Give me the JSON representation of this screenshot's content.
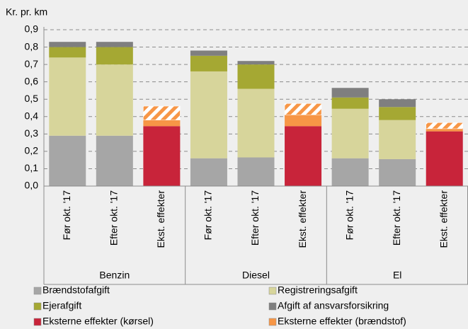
{
  "chart_data": {
    "type": "stacked_bar",
    "y_label": "Kr. pr. km",
    "groups": [
      "Benzin",
      "Diesel",
      "El"
    ],
    "categories": [
      "Før okt. '17",
      "Efter okt. '17",
      "Ekst. effekter",
      "Før okt. '17",
      "Efter okt. '17",
      "Ekst. effekter",
      "Før okt. '17",
      "Efter okt. '17",
      "Ekst. effekter"
    ],
    "series": [
      {
        "name": "Brændstofafgift",
        "color": "#a6a6a6",
        "values": [
          0.29,
          0.29,
          null,
          0.16,
          0.165,
          null,
          0.16,
          0.155,
          null
        ]
      },
      {
        "name": "Registreringsafgift",
        "color": "#d7d59b",
        "values": [
          0.45,
          0.41,
          null,
          0.5,
          0.395,
          null,
          0.285,
          0.225,
          null
        ]
      },
      {
        "name": "Ejerafgift",
        "color": "#a5a833",
        "values": [
          0.06,
          0.1,
          null,
          0.09,
          0.14,
          null,
          0.065,
          0.075,
          null
        ]
      },
      {
        "name": "Afgift af ansvarsforsikring",
        "color": "#7f7f7f",
        "values": [
          0.03,
          0.03,
          null,
          0.03,
          0.02,
          null,
          0.055,
          0.045,
          null
        ]
      },
      {
        "name": "Eksterne effekter (kørsel)",
        "color": "#c8243a",
        "values": [
          null,
          null,
          0.345,
          null,
          null,
          0.345,
          null,
          null,
          0.315
        ]
      },
      {
        "name": "Eksterne effekter (brændstof)",
        "color": "#f79646",
        "values": [
          null,
          null,
          0.035,
          null,
          null,
          0.065,
          null,
          null,
          0.015
        ]
      },
      {
        "color": "#f79646",
        "pattern": "hatch",
        "values": [
          null,
          null,
          0.08,
          null,
          null,
          0.065,
          null,
          null,
          0.035
        ]
      }
    ],
    "ylim": [
      0,
      0.9
    ],
    "yticks": [
      {
        "value": 0,
        "label": "0,0"
      },
      {
        "value": 0.1,
        "label": "0,1"
      },
      {
        "value": 0.2,
        "label": "0,2"
      },
      {
        "value": 0.3,
        "label": "0,3"
      },
      {
        "value": 0.4,
        "label": "0,4"
      },
      {
        "value": 0.5,
        "label": "0,5"
      },
      {
        "value": 0.6,
        "label": "0,6"
      },
      {
        "value": 0.7,
        "label": "0,7"
      },
      {
        "value": 0.8,
        "label": "0,8"
      },
      {
        "value": 0.9,
        "label": "0,9"
      }
    ],
    "grid": true
  }
}
